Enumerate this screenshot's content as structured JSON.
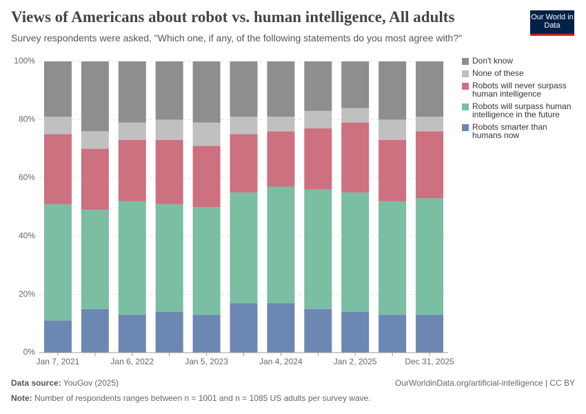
{
  "logo": "Our World in Data",
  "chart_data": {
    "type": "stacked-bar",
    "title": "Views of Americans about robot vs. human intelligence, All adults",
    "subtitle": "Survey respondents were asked, \"Which one, if any, of the following statements do you most agree with?\"",
    "categories": [
      "Jan 7, 2021",
      null,
      "Jan 6, 2022",
      null,
      "Jan 5, 2023",
      null,
      "Jan 4, 2024",
      null,
      "Jan 2, 2025",
      null,
      "Dec 31, 2025"
    ],
    "series": [
      {
        "name": "Robots smarter than humans now",
        "color": "#6d87b3",
        "values": [
          11,
          15,
          13,
          14,
          13,
          17,
          17,
          15,
          14,
          13,
          13
        ]
      },
      {
        "name": "Robots will surpass human intelligence in the future",
        "color": "#7abea3",
        "values": [
          40,
          34,
          39,
          37,
          37,
          38,
          40,
          41,
          41,
          39,
          40
        ]
      },
      {
        "name": "Robots will never surpass human intelligence",
        "color": "#cd7080",
        "values": [
          24,
          21,
          21,
          22,
          21,
          20,
          19,
          21,
          24,
          21,
          23
        ]
      },
      {
        "name": "None of these",
        "color": "#c0c0c0",
        "values": [
          6,
          6,
          6,
          7,
          8,
          6,
          5,
          6,
          5,
          7,
          5
        ]
      },
      {
        "name": "Don't know",
        "color": "#8e8e8e",
        "values": [
          19,
          24,
          21,
          20,
          21,
          19,
          19,
          17,
          16,
          20,
          19
        ]
      }
    ],
    "ylim": [
      0,
      100
    ],
    "yticks": [
      {
        "value": 0,
        "label": "0%"
      },
      {
        "value": 20,
        "label": "20%"
      },
      {
        "value": 40,
        "label": "40%"
      },
      {
        "value": 60,
        "label": "60%"
      },
      {
        "value": 80,
        "label": "80%"
      },
      {
        "value": 100,
        "label": "100%"
      }
    ],
    "grid": true,
    "legend": "right",
    "source_label": "Data source:",
    "source": "YouGov (2025)",
    "url": "OurWorldinData.org/artificial-intelligence | CC BY",
    "note_label": "Note:",
    "note": "Number of respondents ranges between n = 1001 and n = 1085 US adults per survey wave."
  }
}
